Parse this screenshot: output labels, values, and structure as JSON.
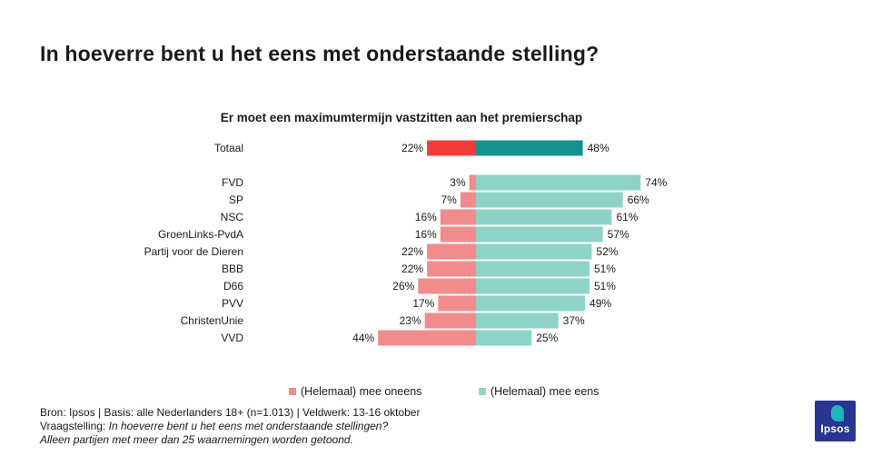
{
  "title": "In hoeverre bent u het eens met onderstaande stelling?",
  "chart_data": {
    "type": "bar",
    "subtitle": "Er moet een maximumtermijn vastzitten aan het premierschap",
    "categories": [
      "Totaal",
      "FVD",
      "SP",
      "NSC",
      "GroenLinks-PvdA",
      "Partij voor de Dieren",
      "BBB",
      "D66",
      "PVV",
      "ChristenUnie",
      "VVD"
    ],
    "series": [
      {
        "name": "(Helemaal) mee oneens",
        "values": [
          22,
          3,
          7,
          16,
          16,
          22,
          22,
          26,
          17,
          23,
          44
        ],
        "direction": "left"
      },
      {
        "name": "(Helemaal) mee eens",
        "values": [
          48,
          74,
          66,
          61,
          57,
          52,
          51,
          51,
          49,
          37,
          25
        ],
        "direction": "right"
      }
    ],
    "unit": "%",
    "colors": {
      "total_disagree": "#f23c3c",
      "total_agree": "#16928e",
      "disagree": "#f28b8b",
      "agree": "#8fd3c8"
    },
    "legend_position": "bottom"
  },
  "legend": {
    "disagree_label": "(Helemaal) mee oneens",
    "agree_label": "(Helemaal) mee eens"
  },
  "footer": {
    "source": "Bron: Ipsos | Basis: alle Nederlanders  18+ (n=1.013)  | Veldwerk: 13-16  oktober",
    "question_prefix": "Vraagstelling: ",
    "question_text": "In hoeverre  bent u het eens met onderstaande  stellingen?",
    "note": "Alleen partijen  met meer dan 25 waarnemingen  worden  getoond."
  },
  "logo": {
    "text": "Ipsos"
  }
}
